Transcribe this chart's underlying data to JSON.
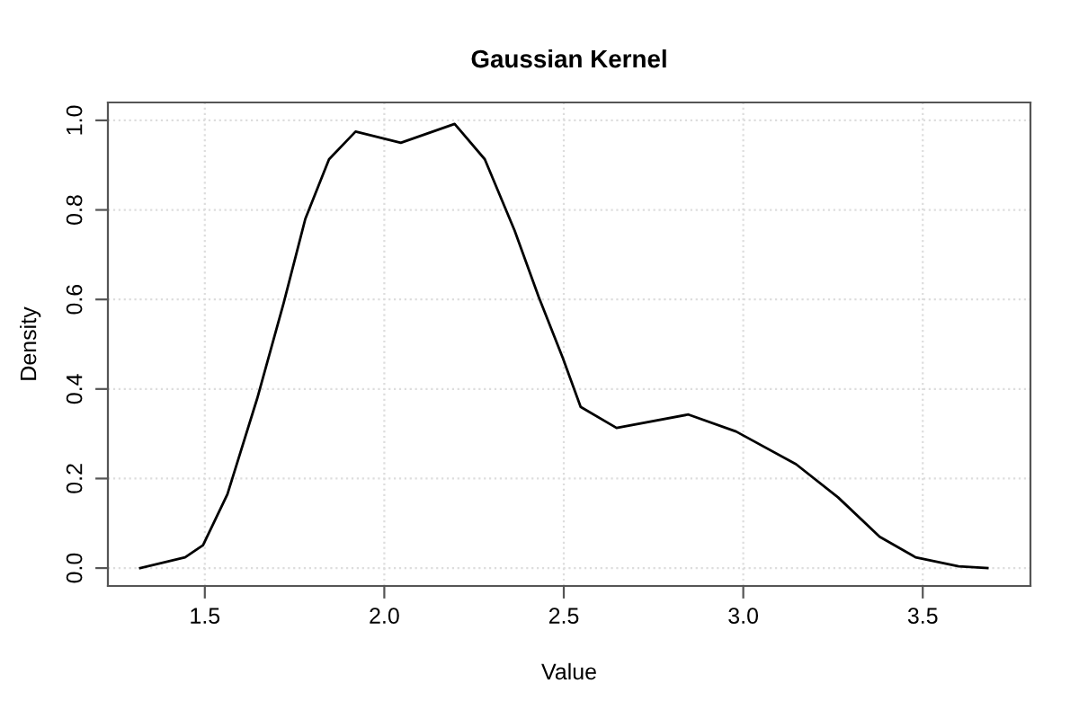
{
  "chart_data": {
    "type": "line",
    "title": "Gaussian Kernel",
    "xlabel": "Value",
    "ylabel": "Density",
    "x": [
      1.32,
      1.445,
      1.495,
      1.563,
      1.646,
      1.72,
      1.78,
      1.846,
      1.92,
      2.046,
      2.196,
      2.28,
      2.363,
      2.43,
      2.497,
      2.547,
      2.647,
      2.847,
      2.98,
      3.147,
      3.264,
      3.38,
      3.48,
      3.6,
      3.68
    ],
    "series": [
      {
        "color": "#000000",
        "values": [
          0.0,
          0.024,
          0.051,
          0.165,
          0.379,
          0.593,
          0.78,
          0.913,
          0.975,
          0.95,
          0.992,
          0.913,
          0.754,
          0.606,
          0.47,
          0.36,
          0.313,
          0.343,
          0.305,
          0.232,
          0.158,
          0.07,
          0.024,
          0.004,
          0.0
        ]
      }
    ],
    "xlim": [
      1.23,
      3.8
    ],
    "ylim": [
      -0.04,
      1.04
    ],
    "xticks": [
      {
        "value": 1.5,
        "label": "1.5"
      },
      {
        "value": 2.0,
        "label": "2.0"
      },
      {
        "value": 2.5,
        "label": "2.5"
      },
      {
        "value": 3.0,
        "label": "3.0"
      },
      {
        "value": 3.5,
        "label": "3.5"
      }
    ],
    "yticks": [
      {
        "value": 0.0,
        "label": "0.0"
      },
      {
        "value": 0.2,
        "label": "0.2"
      },
      {
        "value": 0.4,
        "label": "0.4"
      },
      {
        "value": 0.6,
        "label": "0.6"
      },
      {
        "value": 0.8,
        "label": "0.8"
      },
      {
        "value": 1.0,
        "label": "1.0"
      }
    ],
    "grid": true,
    "marker": "none",
    "line_style": "solid"
  }
}
